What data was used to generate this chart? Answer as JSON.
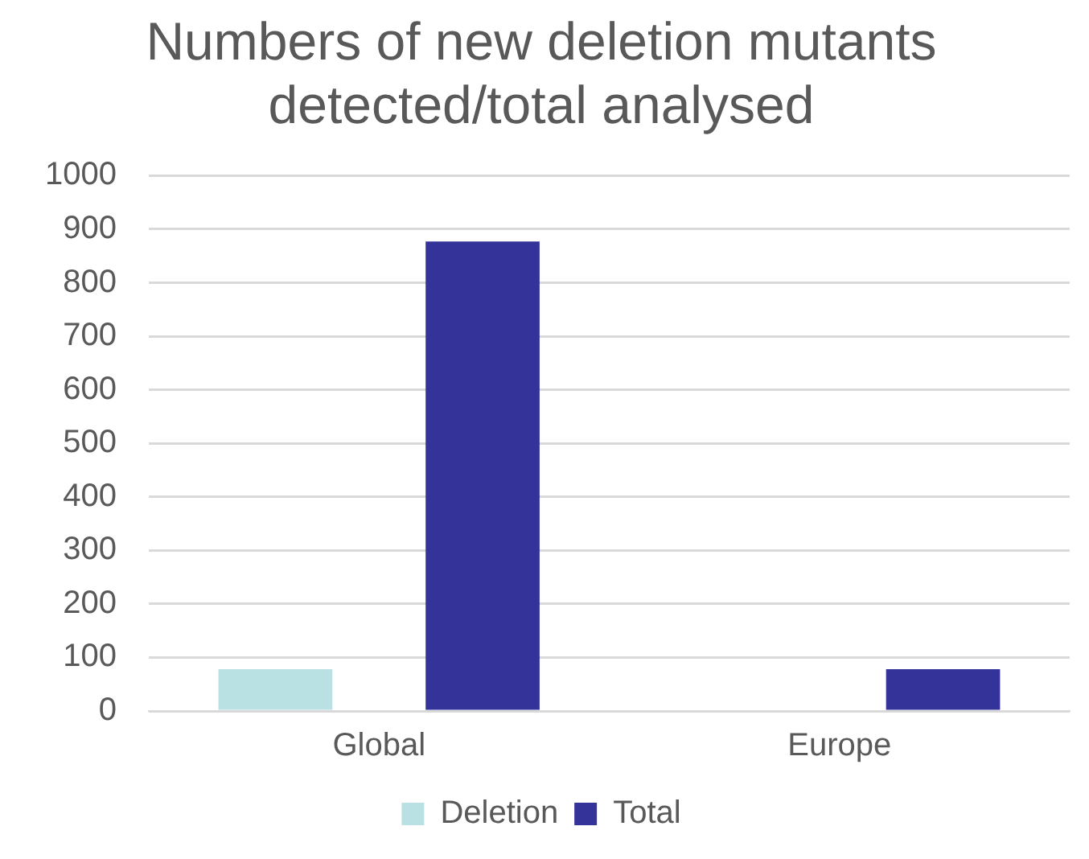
{
  "chart_data": {
    "type": "bar",
    "title": "Numbers of new deletion mutants detected/total analysed",
    "categories": [
      "Global",
      "Europe"
    ],
    "series": [
      {
        "name": "Deletion",
        "color": "#b9e0e3",
        "values": [
          78,
          0
        ]
      },
      {
        "name": "Total",
        "color": "#333399",
        "values": [
          877,
          78
        ]
      }
    ],
    "ylim": [
      0,
      1000
    ],
    "yticks": [
      0,
      100,
      200,
      300,
      400,
      500,
      600,
      700,
      800,
      900,
      1000
    ],
    "grid": "y",
    "legend": "bottom"
  }
}
